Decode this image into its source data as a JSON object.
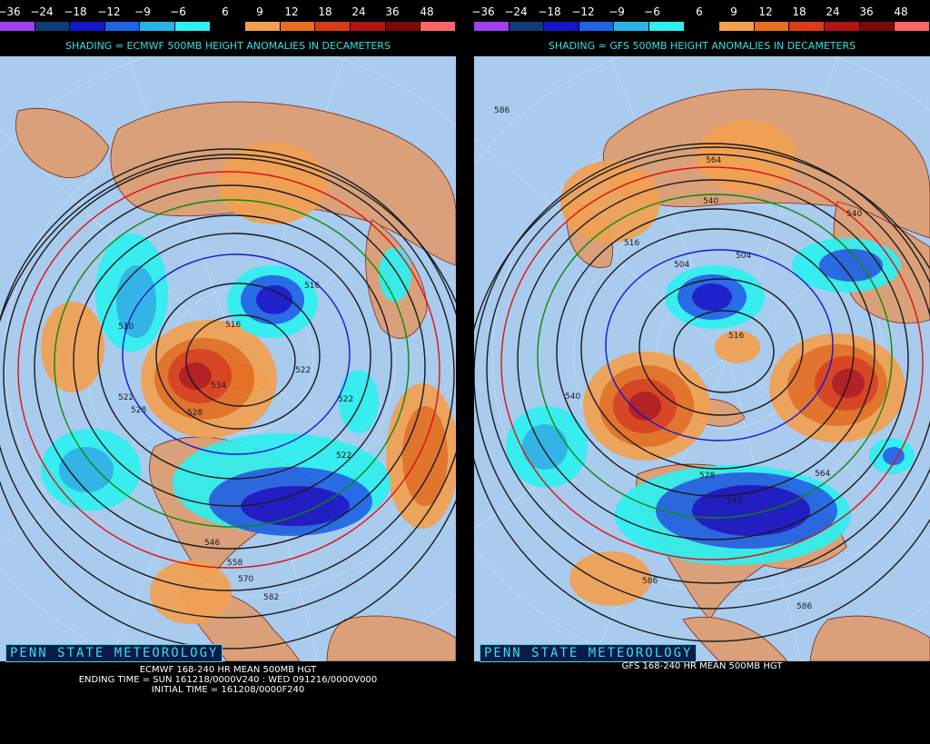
{
  "legend": {
    "labels": [
      "−36",
      "−24",
      "−18",
      "−12",
      "−9",
      "−6",
      "6",
      "9",
      "12",
      "18",
      "24",
      "36",
      "48"
    ],
    "colors": [
      "#a040f0",
      "#103c78",
      "#1414c8",
      "#1e64e6",
      "#28b4e6",
      "#2ef0f0",
      "#000000",
      "#f2a050",
      "#e66e1e",
      "#dc3c14",
      "#b41414",
      "#780a0a",
      "#ff6464"
    ]
  },
  "colors": {
    "ocean": "#a8cbee",
    "land": "#d9a07a",
    "contour": "#1a1a1a",
    "contour_red": "#e01010",
    "contour_green": "#0a8a0a",
    "contour_blue": "#1515d0",
    "border": "#7a2a1a"
  },
  "panels": [
    {
      "subtitle": "SHADING = ECMWF 500MB HEIGHT ANOMALIES IN DECAMETERS",
      "credit": "PENN STATE METEOROLOGY",
      "caption_lines": [
        "ECMWF 168-240 HR MEAN 500MB HGT",
        "ENDING TIME = SUN 161218/0000V240 : WED 091216/0000V000",
        "INITIAL TIME = 161208/0000F240"
      ],
      "contour_labels": [
        "510",
        "516",
        "516",
        "522",
        "522",
        "522",
        "522",
        "528",
        "534",
        "528",
        "546",
        "558",
        "570",
        "582"
      ]
    },
    {
      "subtitle": "SHADING = GFS 500MB HEIGHT ANOMALIES IN DECAMETERS",
      "credit": "PENN STATE METEOROLOGY",
      "caption_lines": [
        "GFS 168-240 HR MEAN 500MB HGT"
      ],
      "contour_labels": [
        "586",
        "564",
        "540",
        "540",
        "516",
        "504",
        "504",
        "516",
        "540",
        "528",
        "540",
        "564",
        "586",
        "586"
      ]
    }
  ]
}
